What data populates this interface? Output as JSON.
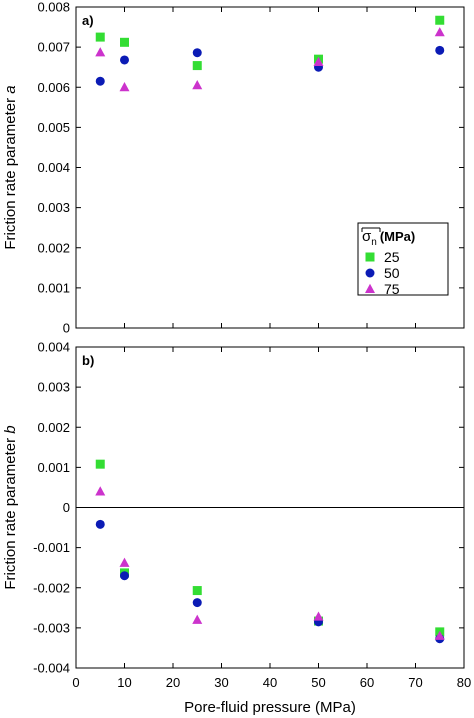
{
  "chart_data": [
    {
      "type": "scatter",
      "panel_label": "a)",
      "ylabel_text": "Friction rate parameter ",
      "ylabel_var": "a",
      "xlabel": "",
      "xlim": [
        0,
        80
      ],
      "ylim": [
        0,
        0.008
      ],
      "y_ticks": [
        "0",
        "0.001",
        "0.002",
        "0.003",
        "0.004",
        "0.005",
        "0.006",
        "0.007",
        "0.008"
      ],
      "x_ticks": [],
      "zero_line": false,
      "grid": false,
      "legend": {
        "placement": "right",
        "title_base": "σ",
        "title_sub": "n",
        "title_unit": "(MPa)",
        "entries": [
          "25",
          "50",
          "75"
        ]
      },
      "series": [
        {
          "name": "25",
          "marker": "square",
          "color": "#33dd33",
          "x": [
            5,
            10,
            25,
            50,
            75
          ],
          "y": [
            0.00725,
            0.00712,
            0.00654,
            0.0067,
            0.00767
          ]
        },
        {
          "name": "50",
          "marker": "circle",
          "color": "#0b1bb5",
          "x": [
            5,
            10,
            25,
            50,
            75
          ],
          "y": [
            0.00615,
            0.00668,
            0.00686,
            0.0065,
            0.00692
          ]
        },
        {
          "name": "75",
          "marker": "triangle",
          "color": "#cc33cc",
          "x": [
            5,
            10,
            25,
            50,
            75
          ],
          "y": [
            0.00687,
            0.006,
            0.00605,
            0.00663,
            0.00737
          ]
        }
      ]
    },
    {
      "type": "scatter",
      "panel_label": "b)",
      "ylabel_text": "Friction rate parameter ",
      "ylabel_var": "b",
      "xlabel": "Pore-fluid pressure (MPa)",
      "xlim": [
        0,
        80
      ],
      "ylim": [
        -0.004,
        0.004
      ],
      "y_ticks": [
        "0.004",
        "0.003",
        "0.002",
        "0.001",
        "0",
        "-0.001",
        "-0.002",
        "-0.003",
        "-0.004"
      ],
      "x_ticks": [
        "0",
        "10",
        "20",
        "30",
        "40",
        "50",
        "60",
        "70",
        "80"
      ],
      "zero_line": true,
      "grid": false,
      "series": [
        {
          "name": "25",
          "marker": "square",
          "color": "#33dd33",
          "x": [
            5,
            10,
            25,
            50,
            75
          ],
          "y": [
            0.00108,
            -0.00163,
            -0.00207,
            -0.00283,
            -0.0031
          ]
        },
        {
          "name": "50",
          "marker": "circle",
          "color": "#0b1bb5",
          "x": [
            5,
            10,
            25,
            50,
            75
          ],
          "y": [
            -0.00042,
            -0.0017,
            -0.00237,
            -0.00285,
            -0.00327
          ]
        },
        {
          "name": "75",
          "marker": "triangle",
          "color": "#cc33cc",
          "x": [
            5,
            10,
            25,
            50,
            75
          ],
          "y": [
            0.0004,
            -0.00138,
            -0.0028,
            -0.00272,
            -0.0032
          ]
        }
      ]
    }
  ]
}
